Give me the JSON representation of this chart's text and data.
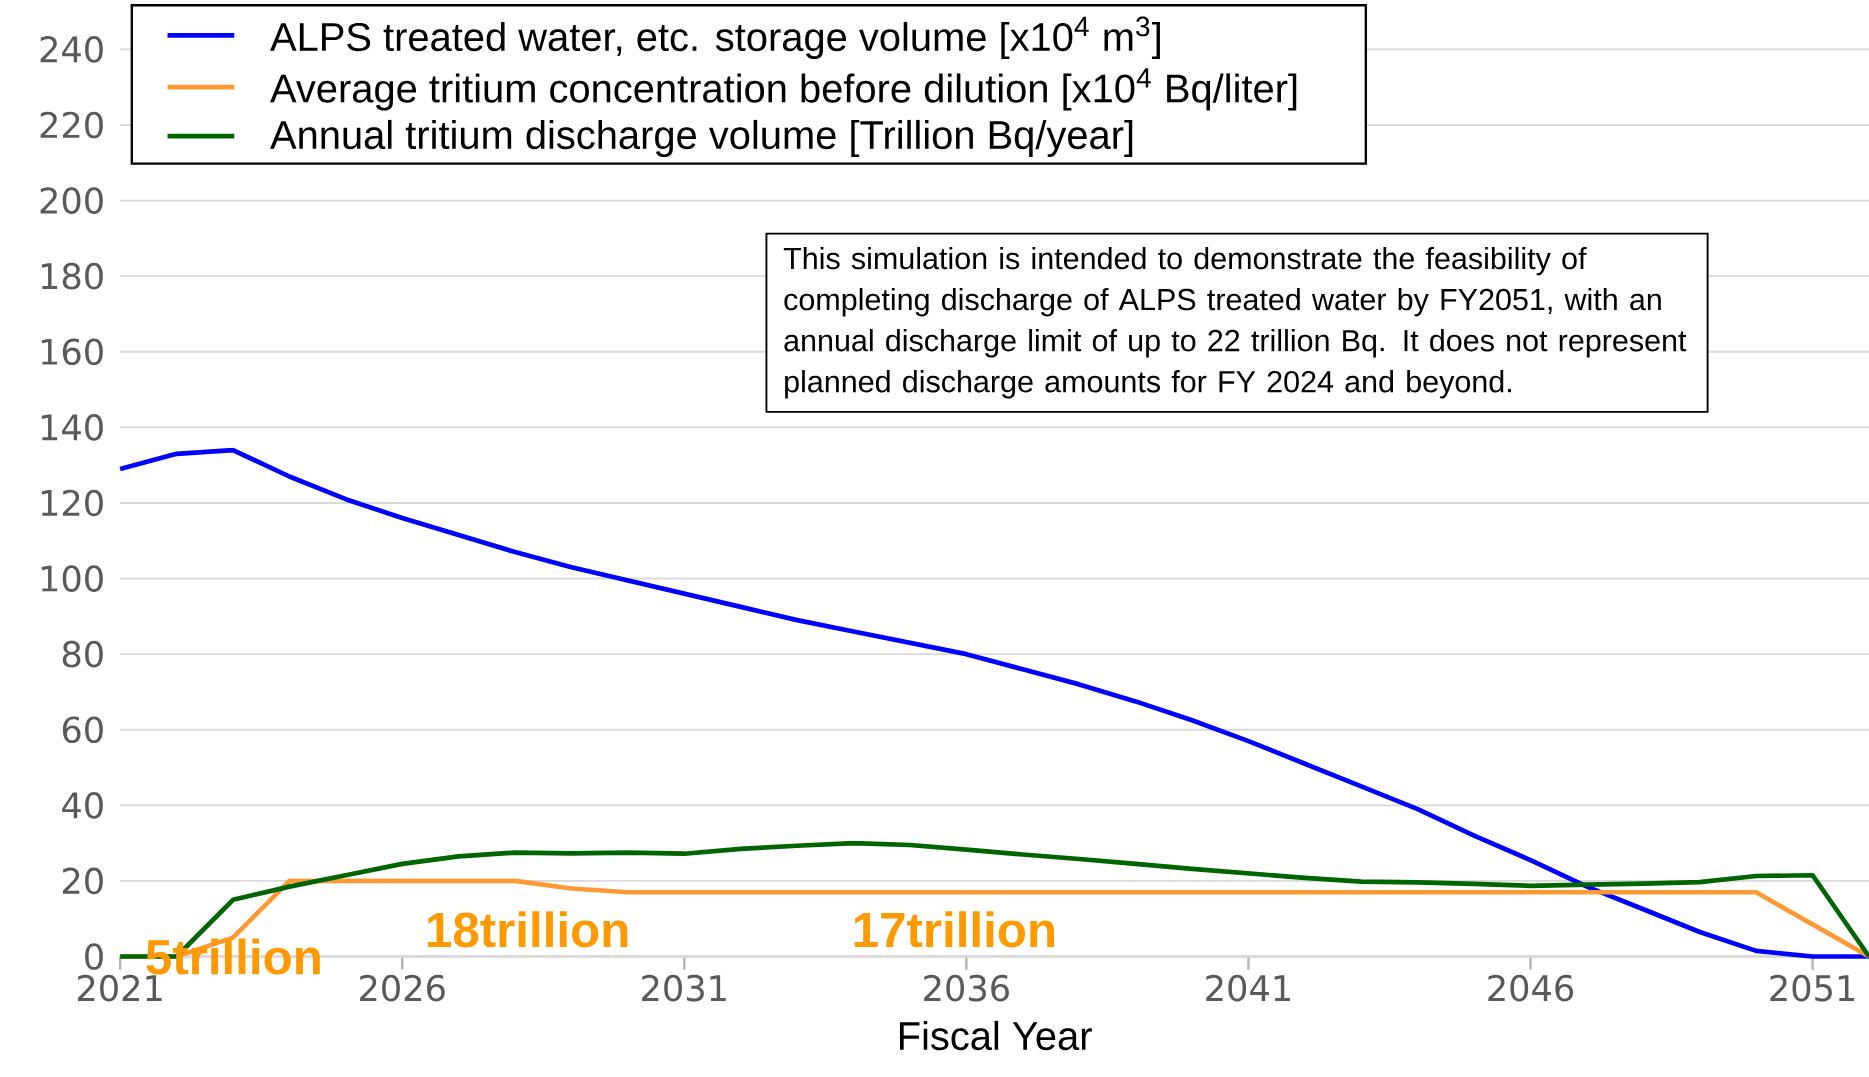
{
  "chart_data": {
    "type": "line",
    "xlabel": "Fiscal Year",
    "x": [
      2021,
      2022,
      2023,
      2024,
      2025,
      2026,
      2027,
      2028,
      2029,
      2030,
      2031,
      2032,
      2033,
      2034,
      2035,
      2036,
      2037,
      2038,
      2039,
      2040,
      2041,
      2042,
      2043,
      2044,
      2045,
      2046,
      2047,
      2048,
      2049,
      2050,
      2051,
      2052
    ],
    "series": [
      {
        "name": "ALPS treated water, etc.  storage volume [x10$^{4}$ m$^{3}$]",
        "color": "#0000ff",
        "values": [
          129,
          133,
          134,
          127,
          121,
          116,
          111.5,
          107,
          103,
          99.5,
          96,
          92.5,
          89,
          86,
          83,
          80,
          76,
          72,
          67.5,
          62.5,
          57,
          51,
          45,
          39,
          32,
          25.5,
          18.5,
          12.5,
          6.5,
          1.5,
          0,
          0
        ]
      },
      {
        "name": "Average tritium concentration before dilution [x10$^{4}$ Bq/liter]",
        "color": "#ff9933",
        "values": [
          0,
          0,
          5,
          20,
          20,
          20,
          20,
          20,
          18,
          17,
          17,
          17,
          17,
          17,
          17,
          17,
          17,
          17,
          17,
          17,
          17,
          17,
          17,
          17,
          17,
          17,
          17,
          17,
          17,
          17,
          8.5,
          0
        ]
      },
      {
        "name": "Annual tritium discharge volume [Trillion Bq/year]",
        "color": "#006400",
        "values": [
          0,
          0,
          15,
          18.5,
          21.5,
          24.5,
          26.5,
          27.5,
          27.3,
          27.5,
          27.2,
          28.5,
          29.3,
          30,
          29.5,
          28.3,
          27,
          25.8,
          24.5,
          23.2,
          22,
          20.8,
          19.8,
          19.6,
          19.2,
          18.7,
          19,
          19.3,
          19.7,
          21.3,
          21.5,
          0
        ]
      }
    ],
    "xlim": [
      2021,
      2052
    ],
    "xticks": [
      2021,
      2026,
      2031,
      2036,
      2041,
      2046,
      2051
    ],
    "ylim": [
      0,
      240
    ],
    "yticks": [
      0,
      20,
      40,
      60,
      80,
      100,
      120,
      140,
      160,
      180,
      200,
      220,
      240
    ],
    "grid": "y",
    "legend": "top left",
    "annotations": [
      "5trillion",
      "18trillion",
      "17trillion",
      "This simulation is intended to demonstrate the feasibility of completing discharge of ALPS treated water by FY2051, with an annual discharge limit of up to 22 trillion Bq. It does not represent planned discharge amounts for FY 2024 and beyond."
    ]
  }
}
